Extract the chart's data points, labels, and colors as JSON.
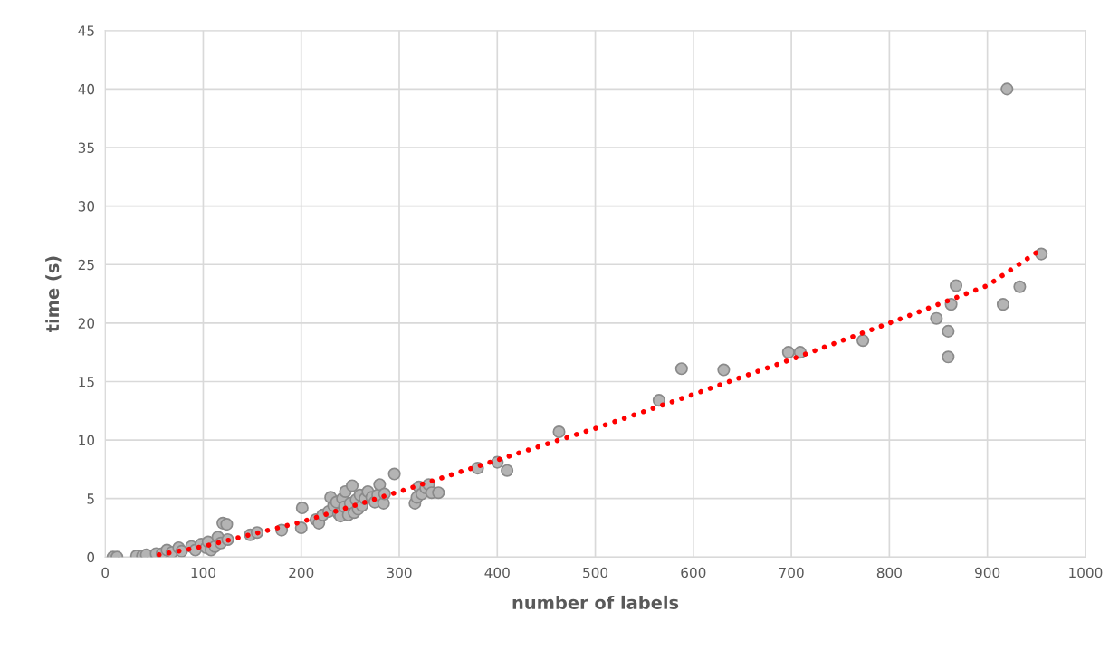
{
  "chart_data": {
    "type": "scatter",
    "xlabel": "number of labels",
    "ylabel": "time (s)",
    "xlim": [
      0,
      1000
    ],
    "xticks": [
      0,
      100,
      200,
      300,
      400,
      500,
      600,
      700,
      800,
      900,
      1000
    ],
    "ylim": [
      0,
      45
    ],
    "yticks": [
      0,
      5,
      10,
      15,
      20,
      25,
      30,
      35,
      40,
      45
    ],
    "grid": true,
    "series": [
      {
        "color": "#b4b4b4",
        "marker": "circle",
        "x": [
          8,
          12,
          32,
          38,
          42,
          52,
          58,
          63,
          68,
          75,
          78,
          88,
          92,
          98,
          103,
          105,
          108,
          112,
          115,
          118,
          120,
          124,
          125,
          148,
          155,
          180,
          200,
          201,
          215,
          218,
          222,
          228,
          230,
          233,
          236,
          238,
          240,
          242,
          244,
          245,
          248,
          250,
          252,
          254,
          256,
          258,
          260,
          262,
          265,
          268,
          272,
          275,
          278,
          280,
          284,
          285,
          295,
          316,
          318,
          320,
          323,
          327,
          330,
          333,
          340,
          380,
          400,
          410,
          463,
          565,
          588,
          631,
          697,
          709,
          773,
          848,
          860,
          860,
          863,
          868,
          916,
          920,
          933,
          955
        ],
        "values": [
          0,
          0,
          0.1,
          0.1,
          0.2,
          0.3,
          0.3,
          0.6,
          0.4,
          0.8,
          0.5,
          0.9,
          0.6,
          1.1,
          0.8,
          1.3,
          0.6,
          0.9,
          1.7,
          1.2,
          2.9,
          2.8,
          1.5,
          1.9,
          2.1,
          2.3,
          2.5,
          4.2,
          3.2,
          2.9,
          3.6,
          3.9,
          5.1,
          4.4,
          4.7,
          3.7,
          3.5,
          5.0,
          4.3,
          5.6,
          3.6,
          4.6,
          6.1,
          3.8,
          4.9,
          4.1,
          5.3,
          4.4,
          5.0,
          5.6,
          5.1,
          4.7,
          5.3,
          6.2,
          4.6,
          5.4,
          7.1,
          4.6,
          5.1,
          6.0,
          5.4,
          5.9,
          6.2,
          5.5,
          5.5,
          7.6,
          8.1,
          7.4,
          10.7,
          13.4,
          16.1,
          16.0,
          17.5,
          17.5,
          18.5,
          20.4,
          19.3,
          17.1,
          21.6,
          23.2,
          21.6,
          40.0,
          23.1,
          25.9
        ]
      },
      {
        "type": "line",
        "color": "#ff0000",
        "line_style": "dotted",
        "marker": "none",
        "x": [
          55,
          100,
          200,
          300,
          400,
          500,
          600,
          700,
          800,
          900,
          955
        ],
        "values": [
          0.2,
          0.9,
          3.0,
          5.6,
          8.3,
          11.0,
          13.9,
          16.9,
          20.0,
          23.2,
          26.3
        ]
      }
    ]
  }
}
